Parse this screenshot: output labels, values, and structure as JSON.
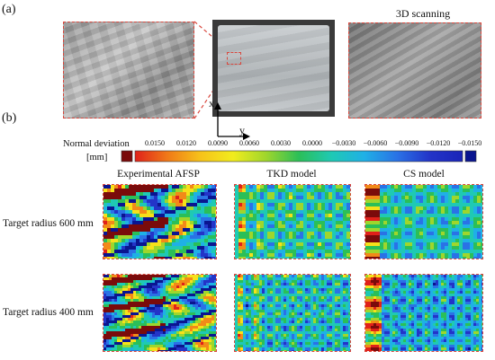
{
  "panel_a": {
    "label": "(a)",
    "scan_title": "3D scanning",
    "axis_x": "x",
    "axis_y": "y"
  },
  "panel_b": {
    "label": "(b)",
    "colorbar": {
      "title_line1": "Normal deviation",
      "title_line2": "[mm]",
      "ticks": [
        "0.0150",
        "0.0120",
        "0.0090",
        "0.0060",
        "0.0030",
        "0.0000",
        "−0.0030",
        "−0.0060",
        "−0.0090",
        "−0.0120",
        "−0.0150"
      ],
      "colors": [
        "#7a0b0b",
        "#e0211a",
        "#f28a18",
        "#f6e11a",
        "#9fd62c",
        "#2bbf58",
        "#1fc9b4",
        "#1fb0e6",
        "#2a72e6",
        "#2334c8",
        "#0a1590"
      ]
    },
    "columns": [
      "Experimental AFSP",
      "TKD model",
      "CS model"
    ],
    "rows": [
      "Target radius 600 mm",
      "Target radius 400 mm"
    ]
  }
}
